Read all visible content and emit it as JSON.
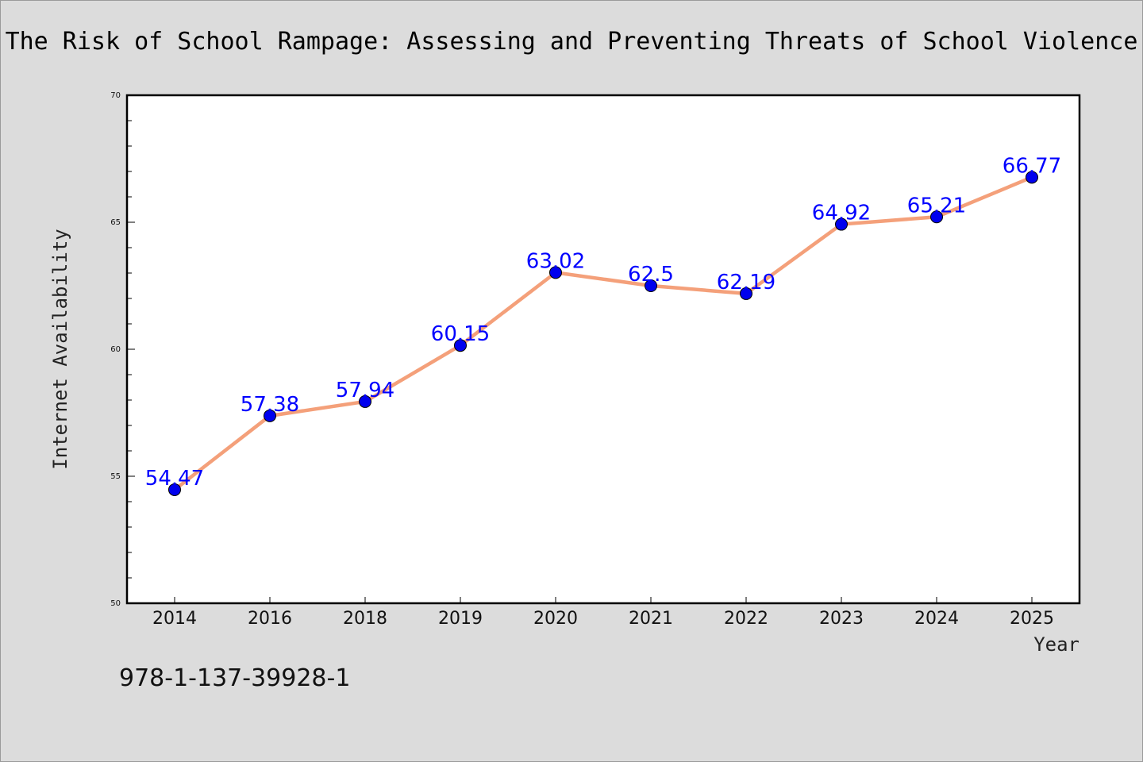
{
  "chart_data": {
    "type": "line",
    "title": "The Risk of School Rampage: Assessing and Preventing Threats of School Violence",
    "xlabel": "Year",
    "ylabel": "Internet Availability",
    "categories": [
      "2014",
      "2016",
      "2018",
      "2019",
      "2020",
      "2021",
      "2022",
      "2023",
      "2024",
      "2025"
    ],
    "series": [
      {
        "values": [
          54.47,
          57.38,
          57.94,
          60.15,
          63.02,
          62.5,
          62.19,
          64.92,
          65.21,
          66.77
        ],
        "labels": [
          "54.47",
          "57.38",
          "57.94",
          "60.15",
          "63.02",
          "62.5",
          "62.19",
          "64.92",
          "65.21",
          "66.77"
        ],
        "line_color": "#f4a07a",
        "marker_color": "#0000ee"
      }
    ],
    "ylim": [
      50,
      70
    ],
    "yticks": [
      "50",
      "55",
      "60",
      "65",
      "70"
    ],
    "grid": false,
    "annotation": "978-1-137-39928-1",
    "colors": {
      "background": "#dcdcdc",
      "plot_area": "#ffffff",
      "label_color": "#0000ff"
    }
  }
}
